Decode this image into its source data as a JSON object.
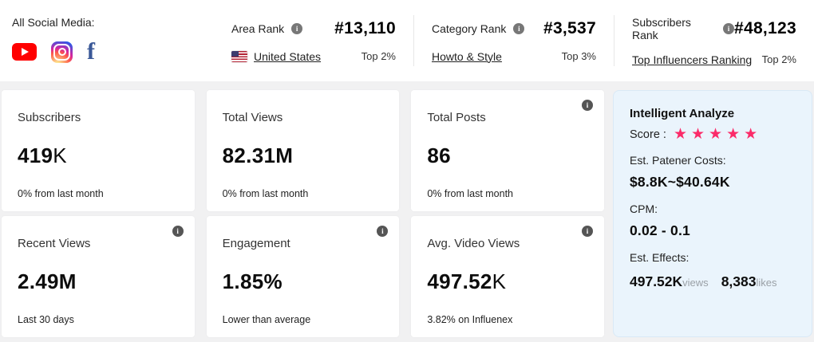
{
  "colors": {
    "accent-pink": "#fb2b69",
    "youtube-red": "#ff0000",
    "facebook-blue": "#3b5998",
    "panel-bg": "#eaf4fc",
    "panel-border": "#d9e9f6",
    "page-bg": "#f1f1f2"
  },
  "topbar": {
    "all_social_media_label": "All Social Media:",
    "social_icons": [
      "youtube-icon",
      "instagram-icon",
      "facebook-icon"
    ],
    "facebook_glyph": "f",
    "ranks": [
      {
        "label": "Area Rank",
        "value": "#13,110",
        "link": "United States",
        "percent": "Top 2%"
      },
      {
        "label": "Category Rank",
        "value": "#3,537",
        "link": "Howto & Style",
        "percent": "Top 3%"
      },
      {
        "label": "Subscribers Rank",
        "value": "#48,123",
        "link": "Top Influencers Ranking",
        "percent": "Top 2%"
      }
    ]
  },
  "cards": [
    {
      "title": "Subscribers",
      "value": "419",
      "suffix": "K",
      "subtext": "0% from last month"
    },
    {
      "title": "Total Views",
      "value": "82.31M",
      "suffix": "",
      "subtext": "0% from last month"
    },
    {
      "title": "Total Posts",
      "value": "86",
      "suffix": "",
      "subtext": "0% from last month"
    },
    {
      "title": "Recent Views",
      "value": "2.49M",
      "suffix": "",
      "subtext": "Last 30 days"
    },
    {
      "title": "Engagement",
      "value": "1.85%",
      "suffix": "",
      "subtext": "Lower than average"
    },
    {
      "title": "Avg. Video Views",
      "value": "497.52",
      "suffix": "K",
      "subtext": "3.82% on Influenex"
    }
  ],
  "analyze": {
    "title": "Intelligent Analyze",
    "score_label": "Score :",
    "score": 5,
    "star_glyph": "★",
    "est_costs_label": "Est. Patener Costs:",
    "est_costs_value": "$8.8K~$40.64K",
    "cpm_label": "CPM:",
    "cpm_value": "0.02 - 0.1",
    "est_effects_label": "Est. Effects:",
    "views_value": "497.52K",
    "views_unit": "views",
    "likes_value": "8,383",
    "likes_unit": "likes"
  }
}
